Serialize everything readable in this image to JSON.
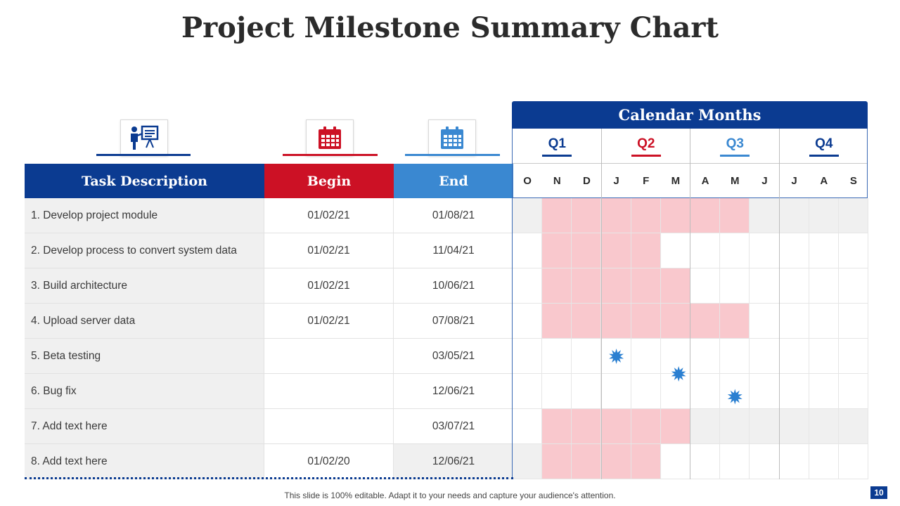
{
  "title": "Project Milestone Summary Chart",
  "headers": {
    "task": "Task Description",
    "begin": "Begin",
    "end": "End"
  },
  "icons": {
    "task": "presentation-icon",
    "begin": "calendar-icon",
    "end": "calendar-icon"
  },
  "colors": {
    "navy": "#0b3b91",
    "red": "#cc1125",
    "blue": "#3a88d1",
    "bar": "#f9c8cd",
    "star": "#2a7fd1",
    "shade": "#f0f0f0"
  },
  "calendar": {
    "title": "Calendar Months",
    "quarters": [
      "Q1",
      "Q2",
      "Q3",
      "Q4"
    ],
    "months": [
      "O",
      "N",
      "D",
      "J",
      "F",
      "M",
      "A",
      "M",
      "J",
      "J",
      "A",
      "S"
    ]
  },
  "tasks": [
    {
      "desc": "1. Develop project module",
      "begin": "01/02/21",
      "end": "01/08/21"
    },
    {
      "desc": "2. Develop process to convert system data",
      "begin": "01/02/21",
      "end": "11/04/21"
    },
    {
      "desc": "3. Build architecture",
      "begin": "01/02/21",
      "end": "10/06/21"
    },
    {
      "desc": "4. Upload server data",
      "begin": "01/02/21",
      "end": "07/08/21"
    },
    {
      "desc": "5. Beta testing",
      "begin": "",
      "end": "03/05/21"
    },
    {
      "desc": "6. Bug fix",
      "begin": "",
      "end": "12/06/21"
    },
    {
      "desc": "7. Add text here",
      "begin": "",
      "end": "03/07/21"
    },
    {
      "desc": "8. Add text here",
      "begin": "01/02/20",
      "end": "12/06/21"
    }
  ],
  "chart_data": {
    "type": "table",
    "title": "Calendar Months",
    "columns": [
      "O",
      "N",
      "D",
      "J",
      "F",
      "M",
      "A",
      "M",
      "J",
      "J",
      "A",
      "S"
    ],
    "bars": [
      {
        "task": "1. Develop project module",
        "start_month_index": 1,
        "end_month_index": 7
      },
      {
        "task": "2. Develop process to convert system data",
        "start_month_index": 1,
        "end_month_index": 4
      },
      {
        "task": "3. Build architecture",
        "start_month_index": 1,
        "end_month_index": 5
      },
      {
        "task": "4. Upload server data",
        "start_month_index": 1,
        "end_month_index": 7
      },
      {
        "task": "7. Add text here",
        "start_month_index": 1,
        "end_month_index": 5
      },
      {
        "task": "8. Add text here",
        "start_month_index": 1,
        "end_month_index": 4
      }
    ],
    "milestones": [
      {
        "task": "5. Beta testing",
        "month_index": 3.5
      },
      {
        "task": "6. Bug fix",
        "month_index": 5.6
      },
      {
        "task": "6. Bug fix",
        "month_index": 7.5
      }
    ]
  },
  "footer": "This slide is 100% editable. Adapt it to your needs and capture your audience's attention.",
  "page_number": "10"
}
